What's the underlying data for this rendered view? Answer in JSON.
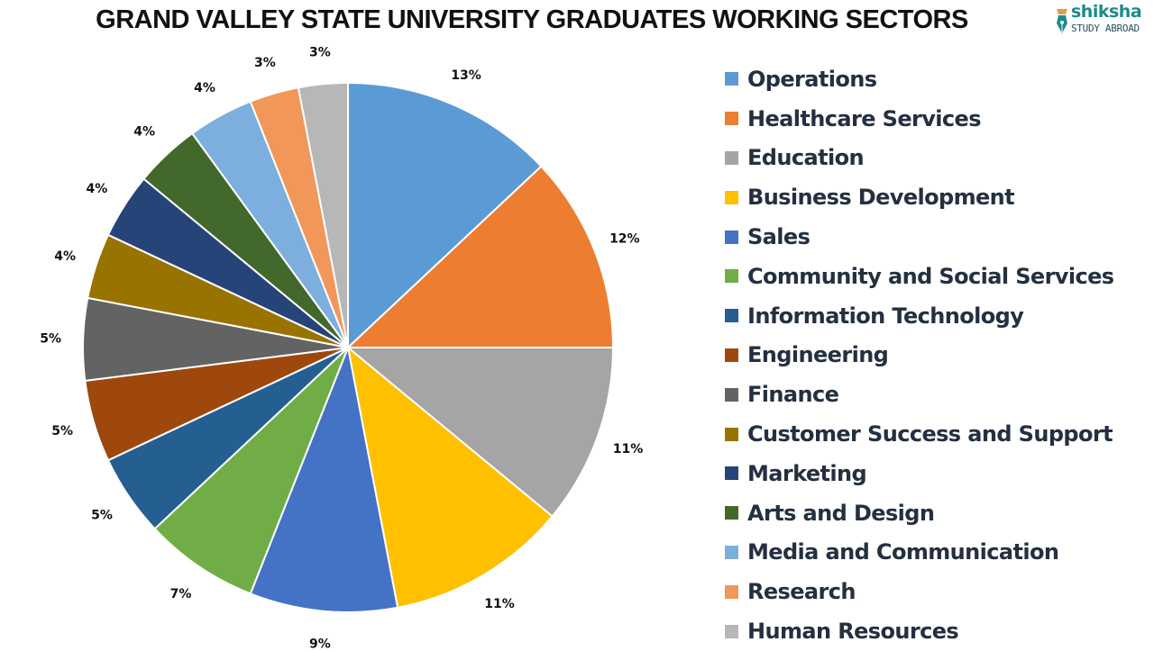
{
  "header": {
    "title": "GRAND VALLEY STATE UNIVERSITY GRADUATES WORKING SECTORS"
  },
  "logo": {
    "brand": "shiksha",
    "subtitle": "STUDY ABROAD",
    "icon": "pen-nib-icon",
    "colors": {
      "brand": "#1d8a8a",
      "subtitle": "#2a4e63"
    }
  },
  "chart_data": {
    "type": "pie",
    "title": "GRAND VALLEY STATE UNIVERSITY GRADUATES WORKING SECTORS",
    "legend_position": "right",
    "start_angle_deg": 0,
    "direction": "clockwise",
    "categories": [
      "Operations",
      "Healthcare Services",
      "Education",
      "Business Development",
      "Sales",
      "Community and Social Services",
      "Information Technology",
      "Engineering",
      "Finance",
      "Customer Success and Support",
      "Marketing",
      "Arts and Design",
      "Media and Communication",
      "Research",
      "Human Resources"
    ],
    "values": [
      13,
      12,
      11,
      11,
      9,
      7,
      5,
      5,
      5,
      4,
      4,
      4,
      4,
      3,
      3
    ],
    "labels": [
      "13%",
      "12%",
      "11%",
      "11%",
      "9%",
      "7%",
      "5%",
      "5%",
      "5%",
      "4%",
      "4%",
      "4%",
      "4%",
      "3%",
      "3%"
    ],
    "colors": [
      "#5b9bd5",
      "#ed7d31",
      "#a5a5a5",
      "#ffc000",
      "#4472c4",
      "#70ad47",
      "#255e91",
      "#9e480e",
      "#636363",
      "#997300",
      "#264478",
      "#43682b",
      "#7cafdd",
      "#f1975a",
      "#b7b7b7"
    ]
  },
  "legend": {
    "items": [
      {
        "label": "Operations",
        "color": "#5b9bd5"
      },
      {
        "label": "Healthcare Services",
        "color": "#ed7d31"
      },
      {
        "label": "Education",
        "color": "#a5a5a5"
      },
      {
        "label": "Business Development",
        "color": "#ffc000"
      },
      {
        "label": "Sales",
        "color": "#4472c4"
      },
      {
        "label": "Community and Social Services",
        "color": "#70ad47"
      },
      {
        "label": "Information Technology",
        "color": "#255e91"
      },
      {
        "label": "Engineering",
        "color": "#9e480e"
      },
      {
        "label": "Finance",
        "color": "#636363"
      },
      {
        "label": "Customer Success and Support",
        "color": "#997300"
      },
      {
        "label": "Marketing",
        "color": "#264478"
      },
      {
        "label": "Arts and Design",
        "color": "#43682b"
      },
      {
        "label": "Media and Communication",
        "color": "#7cafdd"
      },
      {
        "label": "Research",
        "color": "#f1975a"
      },
      {
        "label": "Human Resources",
        "color": "#b7b7b7"
      }
    ]
  }
}
